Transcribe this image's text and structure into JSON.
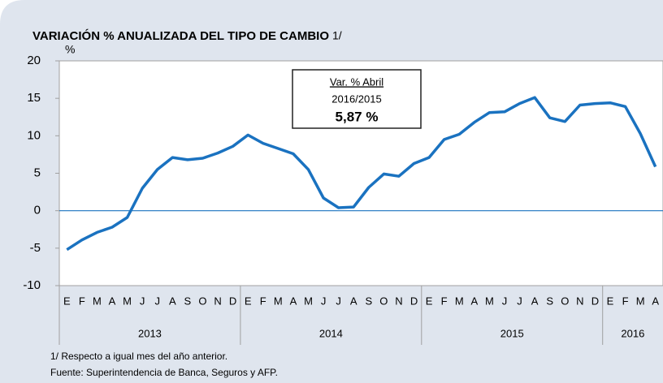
{
  "chart_data": {
    "type": "line",
    "title": "VARIACIÓN % ANUALIZADA DEL TIPO DE CAMBIO",
    "title_note": "1/",
    "y_label": "%",
    "categories": [
      "E",
      "F",
      "M",
      "A",
      "M",
      "J",
      "J",
      "A",
      "S",
      "O",
      "N",
      "D",
      "E",
      "F",
      "M",
      "A",
      "M",
      "J",
      "J",
      "A",
      "S",
      "O",
      "N",
      "D",
      "E",
      "F",
      "M",
      "A",
      "M",
      "J",
      "J",
      "A",
      "S",
      "O",
      "N",
      "D",
      "E",
      "F",
      "M",
      "A"
    ],
    "x_groups": [
      {
        "label": "2013",
        "count": 12
      },
      {
        "label": "2014",
        "count": 12
      },
      {
        "label": "2015",
        "count": 12
      },
      {
        "label": "2016",
        "count": 4
      }
    ],
    "series": [
      {
        "name": "Var. %",
        "color": "#1a72c0",
        "values": [
          -5.2,
          -3.9,
          -2.9,
          -2.2,
          -0.9,
          3.0,
          5.5,
          7.1,
          6.8,
          7.0,
          7.7,
          8.6,
          10.1,
          9.0,
          8.3,
          7.6,
          5.5,
          1.7,
          0.4,
          0.5,
          3.1,
          4.9,
          4.6,
          6.3,
          7.1,
          9.5,
          10.2,
          11.8,
          13.1,
          13.2,
          14.3,
          15.1,
          12.4,
          11.9,
          14.1,
          14.3,
          14.4,
          13.9,
          10.3,
          5.87
        ]
      }
    ],
    "ylim": [
      -10,
      20
    ],
    "yticks": [
      -10,
      -5,
      0,
      5,
      10,
      15,
      20
    ],
    "zero_line": true,
    "annotation": {
      "line1": "Var. % Abril",
      "line2": "2016/2015",
      "line3": "5,87 %"
    },
    "footnotes": [
      "1/ Respecto a igual mes del año anterior.",
      "Fuente: Superintendencia de Banca, Seguros y AFP."
    ]
  }
}
